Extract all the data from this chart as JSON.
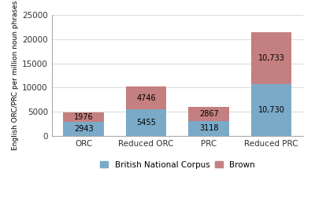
{
  "categories": [
    "ORC",
    "Reduced ORC",
    "PRC",
    "Reduced PRC"
  ],
  "bnc_values": [
    2943,
    5455,
    3118,
    10730
  ],
  "brown_values": [
    1976,
    4746,
    2867,
    10733
  ],
  "bnc_color": "#7aaac8",
  "brown_color": "#c47f80",
  "ylabel": "English ORC/PRC per million noun phrases",
  "ylim": [
    0,
    25000
  ],
  "yticks": [
    0,
    5000,
    10000,
    15000,
    20000,
    25000
  ],
  "legend_labels": [
    "British National Corpus",
    "Brown"
  ],
  "bar_width": 0.65,
  "label_fontsize": 7,
  "tick_fontsize": 7.5,
  "legend_fontsize": 7.5,
  "ylabel_fontsize": 6.5,
  "grid_color": "#dddddd"
}
